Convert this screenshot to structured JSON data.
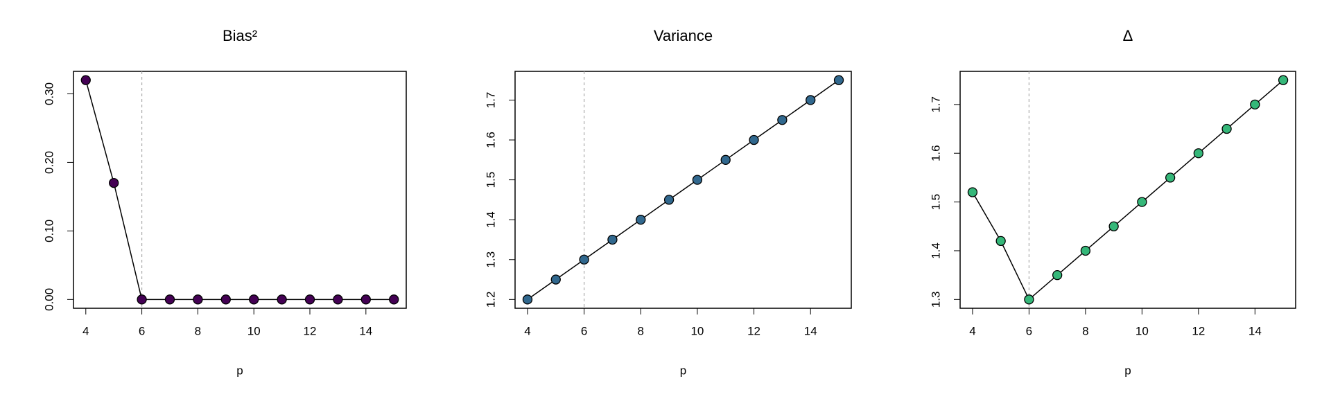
{
  "chart_data": [
    {
      "type": "line",
      "title": "Bias²",
      "xlabel": "p",
      "x": [
        4,
        5,
        6,
        7,
        8,
        9,
        10,
        11,
        12,
        13,
        14,
        15
      ],
      "values": [
        0.32,
        0.17,
        0,
        0,
        0,
        0,
        0,
        0,
        0,
        0,
        0,
        0
      ],
      "color": "#440154",
      "line_color": "#000000",
      "xlim": [
        3.56,
        15.44
      ],
      "xticks": [
        4,
        6,
        8,
        10,
        12,
        14
      ],
      "ylim": [
        -0.0128,
        0.3328
      ],
      "yticks": [
        {
          "value": 0,
          "label": "0.00"
        },
        {
          "value": 0.1,
          "label": "0.10"
        },
        {
          "value": 0.2,
          "label": "0.20"
        },
        {
          "value": 0.3,
          "label": "0.30"
        }
      ],
      "vline": 6,
      "vline_color": "#aaaaaa"
    },
    {
      "type": "line",
      "title": "Variance",
      "xlabel": "p",
      "x": [
        4,
        5,
        6,
        7,
        8,
        9,
        10,
        11,
        12,
        13,
        14,
        15
      ],
      "values": [
        1.2,
        1.25,
        1.3,
        1.35,
        1.4,
        1.45,
        1.5,
        1.55,
        1.6,
        1.65,
        1.7,
        1.75
      ],
      "color": "#31688e",
      "line_color": "#000000",
      "xlim": [
        3.56,
        15.44
      ],
      "xticks": [
        4,
        6,
        8,
        10,
        12,
        14
      ],
      "ylim": [
        1.178,
        1.772
      ],
      "yticks": [
        1.2,
        1.3,
        1.4,
        1.5,
        1.6,
        1.7
      ],
      "vline": 6,
      "vline_color": "#aaaaaa"
    },
    {
      "type": "line",
      "title": "Δ",
      "xlabel": "p",
      "x": [
        4,
        5,
        6,
        7,
        8,
        9,
        10,
        11,
        12,
        13,
        14,
        15
      ],
      "values": [
        1.52,
        1.42,
        1.3,
        1.35,
        1.4,
        1.45,
        1.5,
        1.55,
        1.6,
        1.65,
        1.7,
        1.75
      ],
      "color": "#35b779",
      "line_color": "#000000",
      "xlim": [
        3.56,
        15.44
      ],
      "xticks": [
        4,
        6,
        8,
        10,
        12,
        14
      ],
      "ylim": [
        1.282,
        1.768
      ],
      "yticks": [
        1.3,
        1.4,
        1.5,
        1.6,
        1.7
      ],
      "vline": 6,
      "vline_color": "#aaaaaa"
    }
  ]
}
